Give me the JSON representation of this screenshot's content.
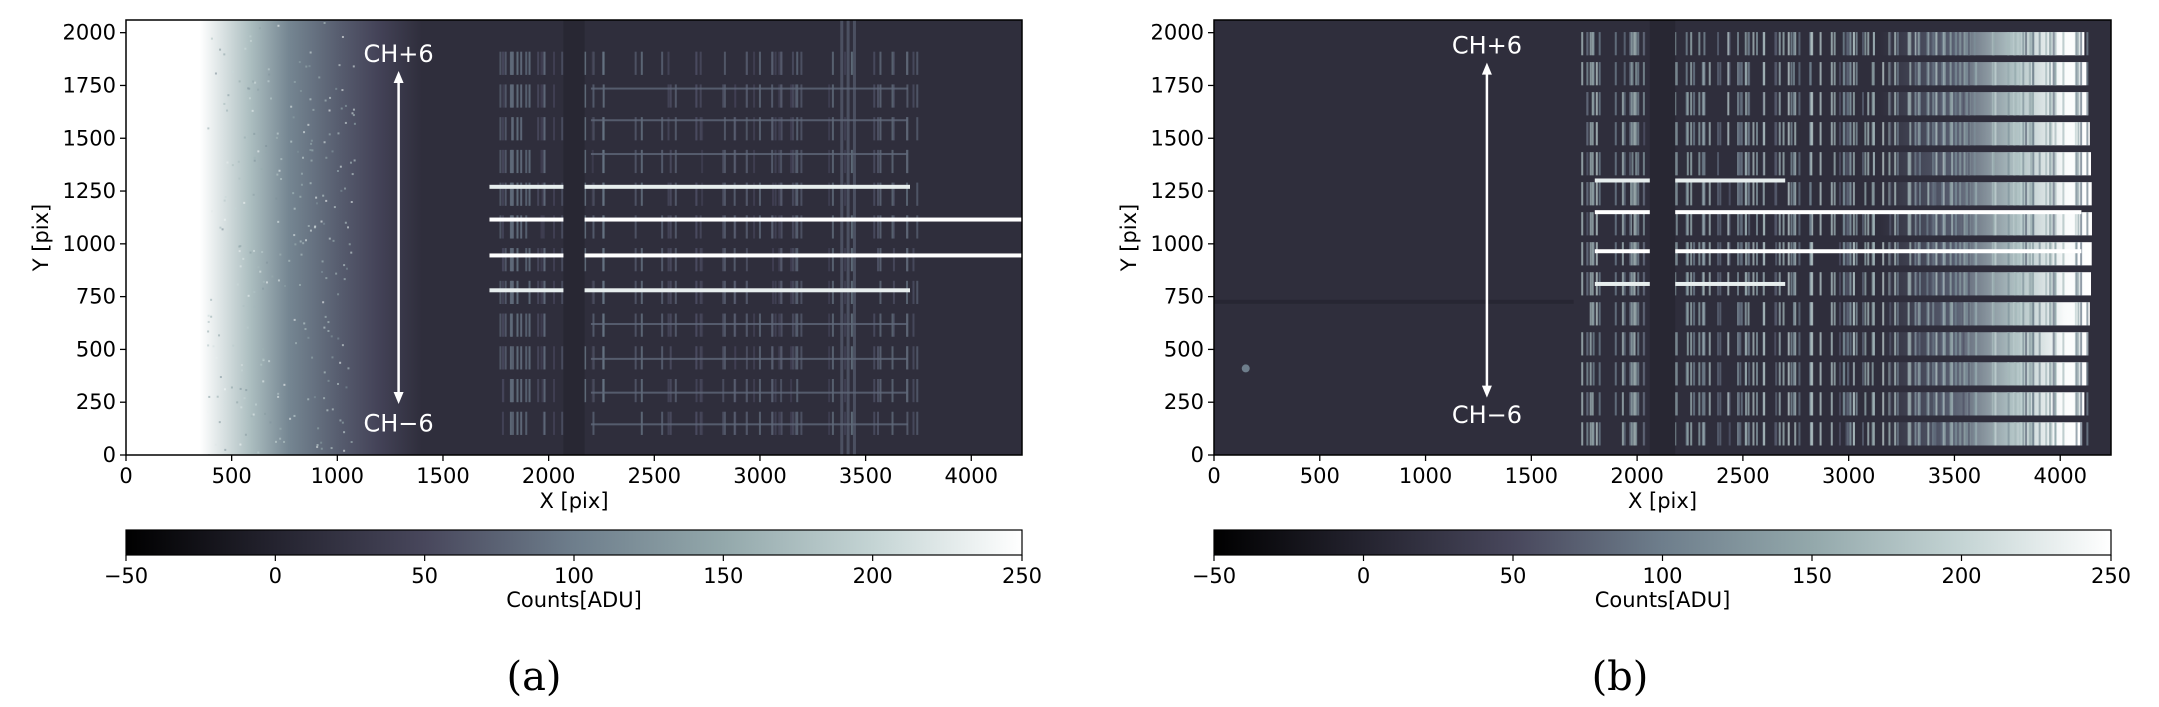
{
  "chart_data": [
    {
      "type": "heatmap",
      "panel": "a",
      "caption": "(a)",
      "xlabel": "X [pix]",
      "ylabel": "Y [pix]",
      "xlim": [
        0,
        4240
      ],
      "ylim": [
        0,
        2060
      ],
      "xticks": [
        0,
        500,
        1000,
        1500,
        2000,
        2500,
        3000,
        3500,
        4000
      ],
      "yticks": [
        0,
        250,
        500,
        750,
        1000,
        1250,
        1500,
        1750,
        2000
      ],
      "colorbar": {
        "label": "Counts[ADU]",
        "range": [
          -50,
          250
        ],
        "ticks": [
          -50,
          0,
          50,
          100,
          150,
          200,
          250
        ],
        "colormap": "bone"
      },
      "gap_x": [
        2070,
        2170
      ],
      "background_gradient": "bright left edge (saturated ~250 ADU for X<450) fading to ~20 ADU by X~1300",
      "bright_traces": [
        {
          "y": 1270,
          "x_range": [
            1720,
            3710
          ],
          "counts": 230
        },
        {
          "y": 1115,
          "x_range": [
            1720,
            4240
          ],
          "counts": 250
        },
        {
          "y": 945,
          "x_range": [
            1720,
            4240
          ],
          "counts": 250
        },
        {
          "y": 780,
          "x_range": [
            1720,
            3710
          ],
          "counts": 230
        }
      ],
      "faint_traces_y": [
        1430,
        1590,
        1740,
        625,
        460,
        300,
        150
      ],
      "annotations": [
        {
          "text": "CH+6",
          "x": 1290,
          "y": 1900
        },
        {
          "text": "CH−6",
          "x": 1290,
          "y": 150
        }
      ],
      "arrow": {
        "x": 1290,
        "y_from": 1790,
        "y_to": 270
      }
    },
    {
      "type": "heatmap",
      "panel": "b",
      "caption": "(b)",
      "xlabel": "X [pix]",
      "ylabel": "Y [pix]",
      "xlim": [
        0,
        4240
      ],
      "ylim": [
        0,
        2060
      ],
      "xticks": [
        0,
        500,
        1000,
        1500,
        2000,
        2500,
        3000,
        3500,
        4000
      ],
      "yticks": [
        0,
        250,
        500,
        750,
        1000,
        1250,
        1500,
        1750,
        2000
      ],
      "colorbar": {
        "label": "Counts[ADU]",
        "range": [
          -50,
          250
        ],
        "ticks": [
          -50,
          0,
          50,
          100,
          150,
          200,
          250
        ],
        "colormap": "bone"
      },
      "gap_x": [
        2060,
        2180
      ],
      "background_gradient": "dark left, bright saturated orders at right end X~3500-4150",
      "bright_traces": [
        {
          "y": 1300,
          "x_range": [
            1800,
            2700
          ],
          "counts": 230
        },
        {
          "y": 1150,
          "x_range": [
            1800,
            4100
          ],
          "counts": 250
        },
        {
          "y": 965,
          "x_range": [
            1800,
            4100
          ],
          "counts": 250
        },
        {
          "y": 810,
          "x_range": [
            1800,
            2700
          ],
          "counts": 230
        }
      ],
      "order_count": 14,
      "orders_x_range": [
        1700,
        4150
      ],
      "annotations": [
        {
          "text": "CH+6",
          "x": 1290,
          "y": 1940
        },
        {
          "text": "CH−6",
          "x": 1290,
          "y": 190
        }
      ],
      "arrow": {
        "x": 1290,
        "y_from": 1830,
        "y_to": 300
      }
    }
  ]
}
